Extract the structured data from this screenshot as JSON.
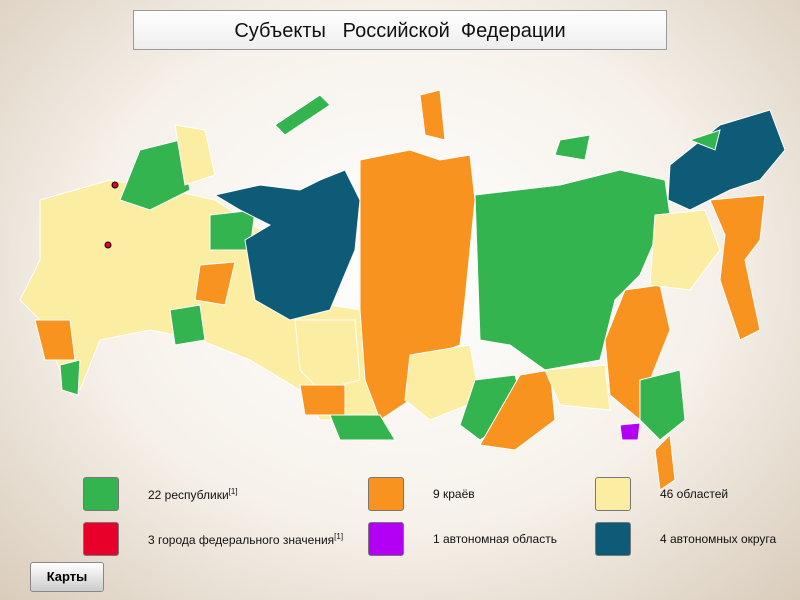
{
  "title": "Субъекты   Российской  Федерации",
  "legend": [
    {
      "label": "22 республики",
      "note": "[1]",
      "color": "#34b44f"
    },
    {
      "label": "9 краёв",
      "color": "#f7931e"
    },
    {
      "label": "46 областей",
      "color": "#fbeea2"
    },
    {
      "label": "3 города федерального значения",
      "note": "[1]",
      "color": "#e8002a"
    },
    {
      "label": "1 автономная область",
      "color": "#b300f5"
    },
    {
      "label": "4 автономных округа",
      "color": "#0e5b78"
    }
  ],
  "button": "Карты"
}
